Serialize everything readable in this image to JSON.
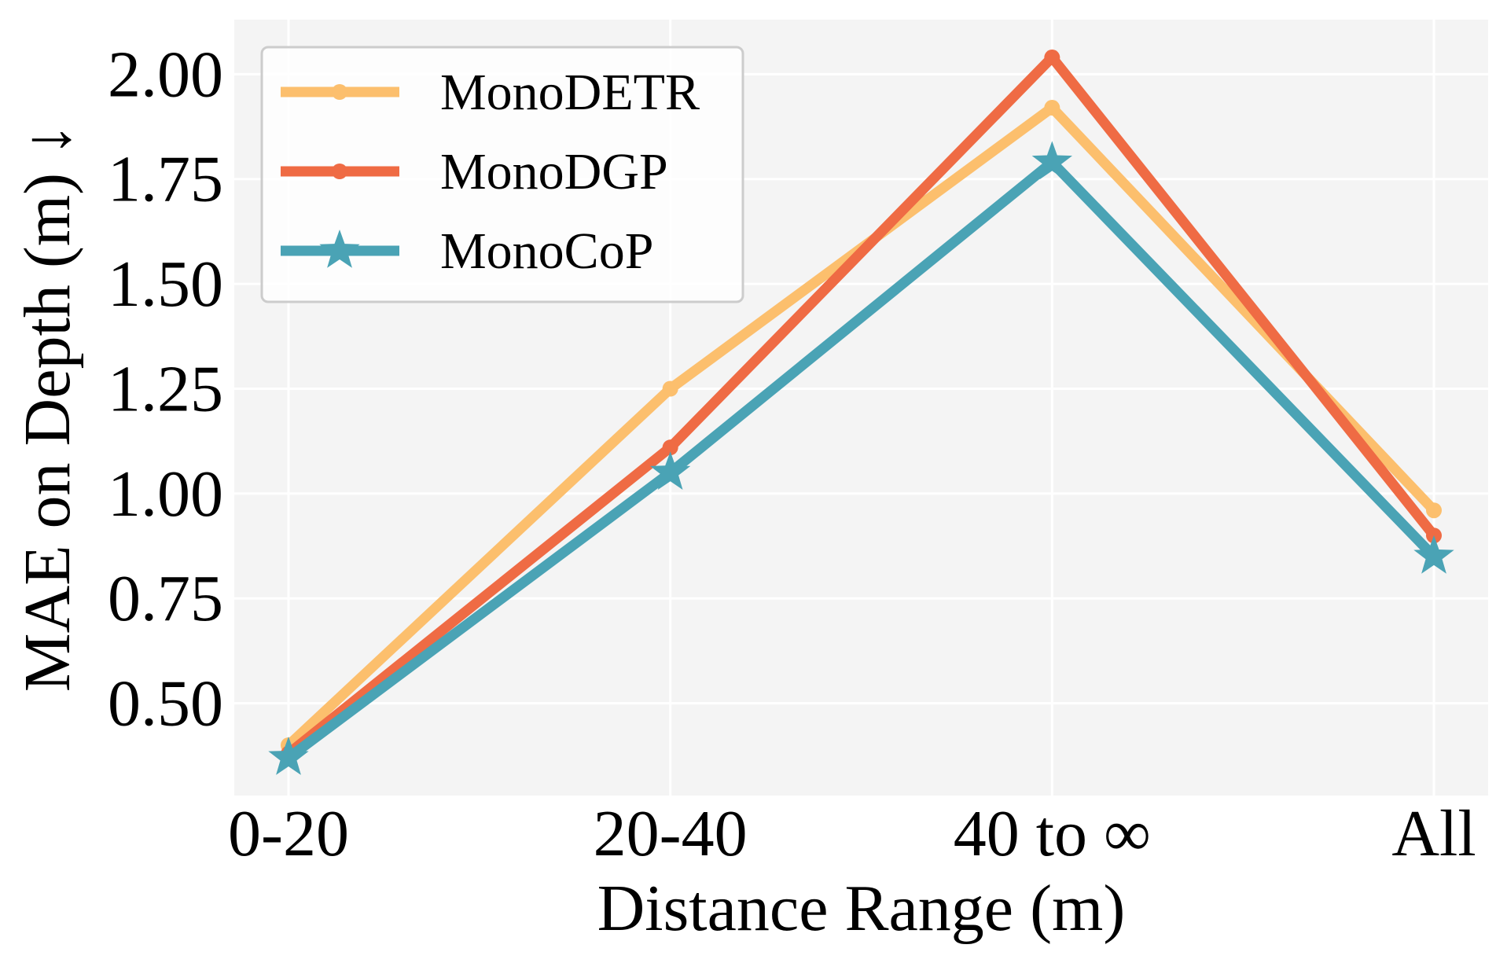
{
  "chart_data": {
    "type": "line",
    "title": "",
    "xlabel": "Distance Range (m)",
    "ylabel": "MAE on Depth (m)  ↓",
    "categories": [
      "0-20",
      "20-40",
      "40 to ∞",
      "All"
    ],
    "ylim": [
      0.28,
      2.13
    ],
    "yticks": [
      0.5,
      0.75,
      1.0,
      1.25,
      1.5,
      1.75,
      2.0
    ],
    "ytick_labels": [
      "0.50",
      "0.75",
      "1.00",
      "1.25",
      "1.50",
      "1.75",
      "2.00"
    ],
    "grid": true,
    "legend_position": "top-left",
    "background_color": "#f4f4f4",
    "grid_color": "#ffffff",
    "series": [
      {
        "name": "MonoDETR",
        "values": [
          0.4,
          1.25,
          1.92,
          0.96
        ],
        "color": "#fcbf6d",
        "marker": "circle"
      },
      {
        "name": "MonoDGP",
        "values": [
          0.38,
          1.11,
          2.04,
          0.9
        ],
        "color": "#ef6b44",
        "marker": "circle"
      },
      {
        "name": "MonoCoP",
        "values": [
          0.37,
          1.05,
          1.79,
          0.85
        ],
        "color": "#4aa3b5",
        "marker": "star"
      }
    ]
  }
}
